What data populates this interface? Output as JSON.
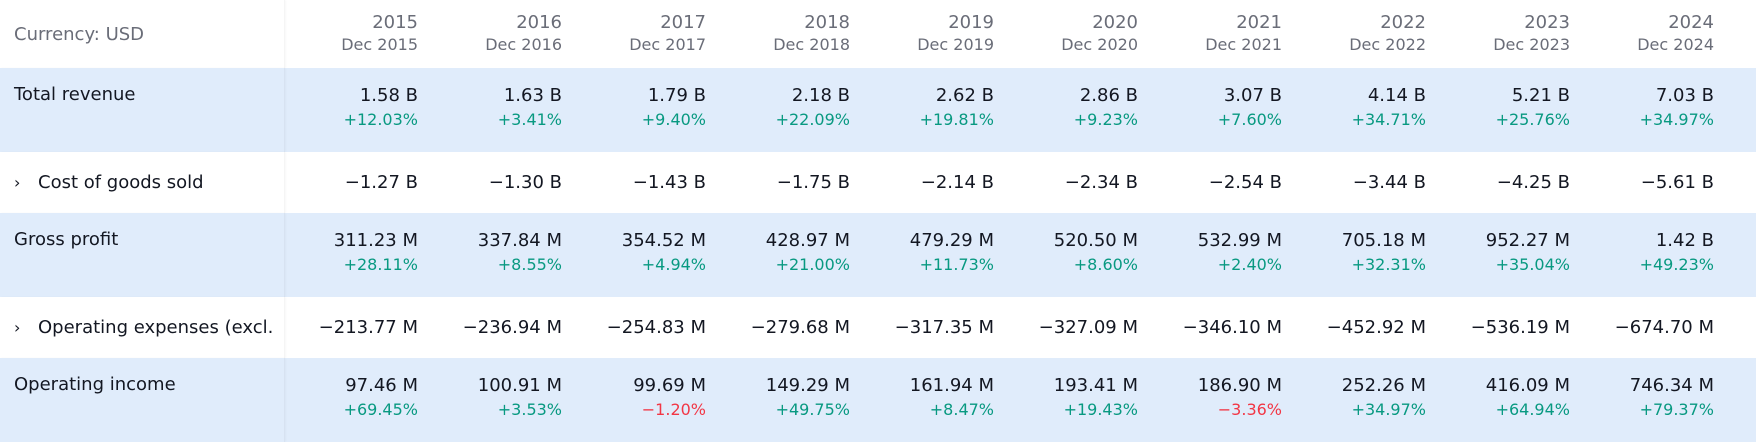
{
  "header": {
    "currency_label": "Currency: USD",
    "periods": [
      {
        "year": "2015",
        "period": "Dec 2015"
      },
      {
        "year": "2016",
        "period": "Dec 2016"
      },
      {
        "year": "2017",
        "period": "Dec 2017"
      },
      {
        "year": "2018",
        "period": "Dec 2018"
      },
      {
        "year": "2019",
        "period": "Dec 2019"
      },
      {
        "year": "2020",
        "period": "Dec 2020"
      },
      {
        "year": "2021",
        "period": "Dec 2021"
      },
      {
        "year": "2022",
        "period": "Dec 2022"
      },
      {
        "year": "2023",
        "period": "Dec 2023"
      },
      {
        "year": "2024",
        "period": "Dec 2024"
      }
    ]
  },
  "colors": {
    "highlight_row": "#e0ecfb",
    "positive": "#089981",
    "negative": "#f23645",
    "text": "#131722",
    "muted": "#6a6d78"
  },
  "rows": [
    {
      "label": "Total revenue",
      "expandable": false,
      "highlight": true,
      "values": [
        "1.58 B",
        "1.63 B",
        "1.79 B",
        "2.18 B",
        "2.62 B",
        "2.86 B",
        "3.07 B",
        "4.14 B",
        "5.21 B",
        "7.03 B"
      ],
      "changes": [
        "+12.03%",
        "+3.41%",
        "+9.40%",
        "+22.09%",
        "+19.81%",
        "+9.23%",
        "+7.60%",
        "+34.71%",
        "+25.76%",
        "+34.97%"
      ]
    },
    {
      "label": "Cost of goods sold",
      "expandable": true,
      "expand_icon": "chevron-right",
      "highlight": false,
      "values": [
        "−1.27 B",
        "−1.30 B",
        "−1.43 B",
        "−1.75 B",
        "−2.14 B",
        "−2.34 B",
        "−2.54 B",
        "−3.44 B",
        "−4.25 B",
        "−5.61 B"
      ]
    },
    {
      "label": "Gross profit",
      "expandable": false,
      "highlight": true,
      "values": [
        "311.23 M",
        "337.84 M",
        "354.52 M",
        "428.97 M",
        "479.29 M",
        "520.50 M",
        "532.99 M",
        "705.18 M",
        "952.27 M",
        "1.42 B"
      ],
      "changes": [
        "+28.11%",
        "+8.55%",
        "+4.94%",
        "+21.00%",
        "+11.73%",
        "+8.60%",
        "+2.40%",
        "+32.31%",
        "+35.04%",
        "+49.23%"
      ]
    },
    {
      "label": "Operating expenses (excl.",
      "expandable": true,
      "expand_icon": "chevron-right",
      "highlight": false,
      "values": [
        "−213.77 M",
        "−236.94 M",
        "−254.83 M",
        "−279.68 M",
        "−317.35 M",
        "−327.09 M",
        "−346.10 M",
        "−452.92 M",
        "−536.19 M",
        "−674.70 M"
      ]
    },
    {
      "label": "Operating income",
      "expandable": false,
      "highlight": true,
      "values": [
        "97.46 M",
        "100.91 M",
        "99.69 M",
        "149.29 M",
        "161.94 M",
        "193.41 M",
        "186.90 M",
        "252.26 M",
        "416.09 M",
        "746.34 M"
      ],
      "changes": [
        "+69.45%",
        "+3.53%",
        "−1.20%",
        "+49.75%",
        "+8.47%",
        "+19.43%",
        "−3.36%",
        "+34.97%",
        "+64.94%",
        "+79.37%"
      ]
    }
  ]
}
